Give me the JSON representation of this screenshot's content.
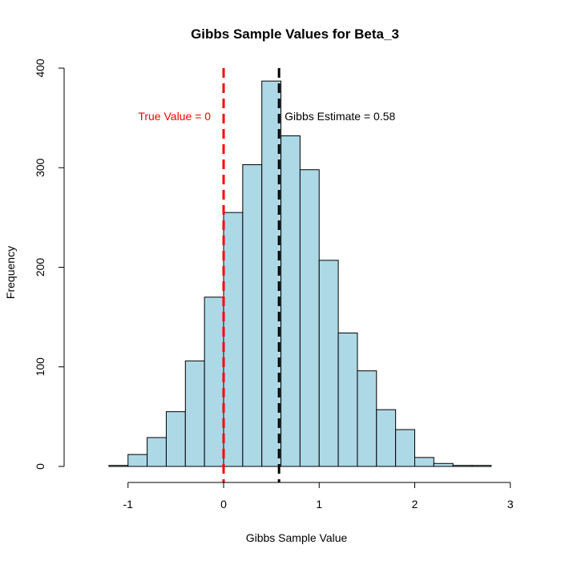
{
  "colors": {
    "bar_fill": "#add8e6",
    "bar_stroke": "#000000",
    "true_line": "#ff0000",
    "estimate_line": "#000000",
    "text": "#000000"
  },
  "chart_data": {
    "type": "bar",
    "title": "Gibbs Sample Values for Beta_3",
    "xlabel": "Gibbs Sample Value",
    "ylabel": "Frequency",
    "xlim": [
      -1.2,
      2.8
    ],
    "ylim": [
      0,
      400
    ],
    "x_ticks": [
      -1,
      0,
      1,
      2,
      3
    ],
    "y_ticks": [
      0,
      100,
      200,
      300,
      400
    ],
    "bin_width": 0.2,
    "bins": [
      {
        "start": -1.2,
        "end": -1.0,
        "count": 1
      },
      {
        "start": -1.0,
        "end": -0.8,
        "count": 12
      },
      {
        "start": -0.8,
        "end": -0.6,
        "count": 29
      },
      {
        "start": -0.6,
        "end": -0.4,
        "count": 55
      },
      {
        "start": -0.4,
        "end": -0.2,
        "count": 106
      },
      {
        "start": -0.2,
        "end": 0.0,
        "count": 170
      },
      {
        "start": 0.0,
        "end": 0.2,
        "count": 255
      },
      {
        "start": 0.2,
        "end": 0.4,
        "count": 303
      },
      {
        "start": 0.4,
        "end": 0.6,
        "count": 387
      },
      {
        "start": 0.6,
        "end": 0.8,
        "count": 332
      },
      {
        "start": 0.8,
        "end": 1.0,
        "count": 298
      },
      {
        "start": 1.0,
        "end": 1.2,
        "count": 207
      },
      {
        "start": 1.2,
        "end": 1.4,
        "count": 134
      },
      {
        "start": 1.4,
        "end": 1.6,
        "count": 96
      },
      {
        "start": 1.6,
        "end": 1.8,
        "count": 57
      },
      {
        "start": 1.8,
        "end": 2.0,
        "count": 37
      },
      {
        "start": 2.0,
        "end": 2.2,
        "count": 9
      },
      {
        "start": 2.2,
        "end": 2.4,
        "count": 3
      },
      {
        "start": 2.4,
        "end": 2.6,
        "count": 1
      },
      {
        "start": 2.6,
        "end": 2.8,
        "count": 1
      }
    ],
    "reference_lines": [
      {
        "name": "true-value",
        "x": 0,
        "label": "True Value = 0",
        "color": "#ff0000",
        "style": "dashed"
      },
      {
        "name": "gibbs-estimate",
        "x": 0.58,
        "label": "Gibbs Estimate = 0.58",
        "color": "#000000",
        "style": "dashed"
      }
    ],
    "grid": false,
    "legend": "none"
  }
}
